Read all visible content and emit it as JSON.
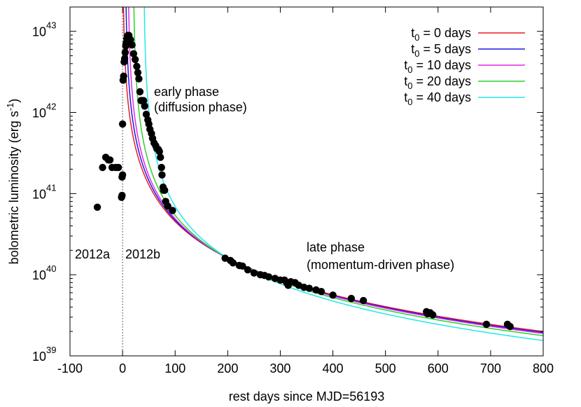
{
  "chart_data": {
    "type": "scatter",
    "xlabel": "rest days since MJD=56193",
    "ylabel": {
      "base": "bolometric luminosity (erg s",
      "sup": "-1",
      "tail": ")"
    },
    "x_range": [
      -100,
      800
    ],
    "y_range_log10": [
      39,
      43.3
    ],
    "y_scale": "log",
    "x_ticks": [
      {
        "value": -100,
        "label": "-100"
      },
      {
        "value": 0,
        "label": "0"
      },
      {
        "value": 100,
        "label": "100"
      },
      {
        "value": 200,
        "label": "200"
      },
      {
        "value": 300,
        "label": "300"
      },
      {
        "value": 400,
        "label": "400"
      },
      {
        "value": 500,
        "label": "500"
      },
      {
        "value": 600,
        "label": "600"
      },
      {
        "value": 700,
        "label": "700"
      },
      {
        "value": 800,
        "label": "800"
      }
    ],
    "y_ticks": [
      {
        "exp": 39,
        "base": "10",
        "sup": "39"
      },
      {
        "exp": 40,
        "base": "10",
        "sup": "40"
      },
      {
        "exp": 41,
        "base": "10",
        "sup": "41"
      },
      {
        "exp": 42,
        "base": "10",
        "sup": "42"
      },
      {
        "exp": 43,
        "base": "10",
        "sup": "43"
      }
    ],
    "legend_position": "top-right",
    "series": [
      {
        "t0": 0,
        "label_pre": "t",
        "label_sub": "0",
        "label_post": " = 0 days",
        "color": "#ee1c24"
      },
      {
        "t0": 5,
        "label_pre": "t",
        "label_sub": "0",
        "label_post": " = 5 days",
        "color": "#1a1ae6"
      },
      {
        "t0": 10,
        "label_pre": "t",
        "label_sub": "0",
        "label_post": " = 10 days",
        "color": "#e629e6"
      },
      {
        "t0": 20,
        "label_pre": "t",
        "label_sub": "0",
        "label_post": " = 20 days",
        "color": "#2bd22b"
      },
      {
        "t0": 40,
        "label_pre": "t",
        "label_sub": "0",
        "label_post": " = 40 days",
        "color": "#22e8e8"
      }
    ],
    "model_anchor": {
      "x": 200,
      "y": 1.6e+40,
      "slope": -1.5
    },
    "marker_color": "#000000",
    "points": [
      [
        -48,
        6.8e+40
      ],
      [
        -38,
        2.1e+41
      ],
      [
        -32,
        2.8e+41
      ],
      [
        -27,
        2.6e+41
      ],
      [
        -24,
        2.6e+41
      ],
      [
        -20,
        2.1e+41
      ],
      [
        -13,
        2.1e+41
      ],
      [
        -8,
        2.1e+41
      ],
      [
        -2,
        9e+40
      ],
      [
        -1,
        9.5e+40
      ],
      [
        -1,
        1.6e+41
      ],
      [
        0,
        1.7e+41
      ],
      [
        0,
        7.2e+41
      ],
      [
        1,
        2.5e+42
      ],
      [
        2,
        2.8e+42
      ],
      [
        3,
        4.2e+42
      ],
      [
        4,
        4.6e+42
      ],
      [
        5,
        5.5e+42
      ],
      [
        6,
        6.6e+42
      ],
      [
        7,
        7.2e+42
      ],
      [
        8,
        8.1e+42
      ],
      [
        9,
        8.7e+42
      ],
      [
        10,
        8.9e+42
      ],
      [
        12,
        8.9e+42
      ],
      [
        15,
        7.9e+42
      ],
      [
        18,
        6.8e+42
      ],
      [
        21,
        5.3e+42
      ],
      [
        24,
        4.5e+42
      ],
      [
        27,
        3.7e+42
      ],
      [
        29,
        3.1e+42
      ],
      [
        31,
        2.6e+42
      ],
      [
        33,
        1.8e+42
      ],
      [
        35,
        1.4e+42
      ],
      [
        37,
        1.4e+42
      ],
      [
        40,
        1.4e+42
      ],
      [
        42,
        1.2e+42
      ],
      [
        45,
        9.5e+41
      ],
      [
        48,
        8.1e+41
      ],
      [
        50,
        7.2e+41
      ],
      [
        52,
        6.2e+41
      ],
      [
        55,
        5.5e+41
      ],
      [
        57,
        4.8e+41
      ],
      [
        60,
        4.2e+41
      ],
      [
        63,
        3.9e+41
      ],
      [
        65,
        3.6e+41
      ],
      [
        68,
        3.5e+41
      ],
      [
        70,
        3.3e+41
      ],
      [
        72,
        2.8e+41
      ],
      [
        74,
        2.1e+41
      ],
      [
        75,
        1.7e+41
      ],
      [
        77,
        1.2e+41
      ],
      [
        78,
        1.1e+41
      ],
      [
        80,
        1.1e+41
      ],
      [
        82,
        8e+40
      ],
      [
        86,
        7e+40
      ],
      [
        95,
        6.2e+40
      ],
      [
        195,
        1.6e+40
      ],
      [
        205,
        1.5e+40
      ],
      [
        210,
        1.4e+40
      ],
      [
        222,
        1.3e+40
      ],
      [
        228,
        1.28e+40
      ],
      [
        238,
        1.15e+40
      ],
      [
        250,
        1.05e+40
      ],
      [
        262,
        1e+40
      ],
      [
        270,
        9.8e+39
      ],
      [
        278,
        9.4e+39
      ],
      [
        290,
        9e+39
      ],
      [
        300,
        8.6e+39
      ],
      [
        308,
        8.6e+39
      ],
      [
        312,
        8e+39
      ],
      [
        315,
        7.4e+39
      ],
      [
        320,
        8.2e+39
      ],
      [
        328,
        8e+39
      ],
      [
        335,
        7.4e+39
      ],
      [
        345,
        7e+39
      ],
      [
        355,
        6.8e+39
      ],
      [
        368,
        6.5e+39
      ],
      [
        378,
        6.2e+39
      ],
      [
        400,
        5.6e+39
      ],
      [
        435,
        5.1e+39
      ],
      [
        458,
        4.8e+39
      ],
      [
        578,
        3.5e+39
      ],
      [
        580,
        3.3e+39
      ],
      [
        585,
        3.4e+39
      ],
      [
        590,
        3.2e+39
      ],
      [
        692,
        2.45e+39
      ],
      [
        732,
        2.45e+39
      ],
      [
        737,
        2.3e+39
      ]
    ],
    "vertical_line_x": 0,
    "annotations": [
      {
        "id": "early",
        "lines": [
          "early phase",
          "(diffusion phase)"
        ]
      },
      {
        "id": "late",
        "lines": [
          "late phase",
          "(momentum-driven phase)"
        ]
      },
      {
        "id": "sn2012a",
        "lines": [
          "2012a"
        ]
      },
      {
        "id": "sn2012b",
        "lines": [
          "2012b"
        ]
      }
    ]
  }
}
